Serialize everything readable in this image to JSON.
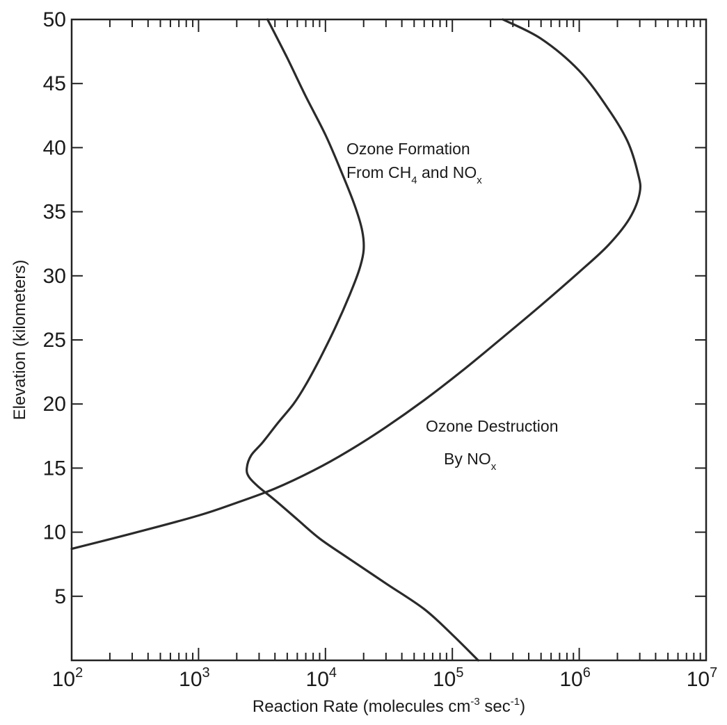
{
  "chart_data": {
    "type": "line",
    "title": "",
    "xlabel": "Reaction Rate (molecules cm",
    "xlabel_sup1": "-3",
    "xlabel_mid": " sec",
    "xlabel_sup2": "-1",
    "xlabel_end": ")",
    "ylabel": "Elevation (kilometers)",
    "x_scale": "log",
    "xlim": [
      100,
      10000000
    ],
    "ylim": [
      0,
      50
    ],
    "x_ticks": [
      {
        "base": "10",
        "exp": "2"
      },
      {
        "base": "10",
        "exp": "3"
      },
      {
        "base": "10",
        "exp": "4"
      },
      {
        "base": "10",
        "exp": "5"
      },
      {
        "base": "10",
        "exp": "6"
      },
      {
        "base": "10",
        "exp": "7"
      }
    ],
    "y_ticks": [
      "5",
      "10",
      "15",
      "20",
      "25",
      "30",
      "35",
      "40",
      "45",
      "50"
    ],
    "annotations": {
      "formation": {
        "line1": "Ozone Formation",
        "line2_pre": "From CH",
        "line2_sub1": "4",
        "line2_mid": " and NO",
        "line2_sub2": "x"
      },
      "destruction": {
        "line1": "Ozone Destruction",
        "line2_pre": "By NO",
        "line2_sub": "x"
      }
    },
    "series": [
      {
        "points": [
          [
            160000,
            0
          ],
          [
            100000,
            2
          ],
          [
            60000,
            4
          ],
          [
            30000,
            6
          ],
          [
            15000,
            8
          ],
          [
            9000,
            9.5
          ],
          [
            6000,
            11
          ],
          [
            4000,
            12.5
          ],
          [
            3000,
            13.5
          ],
          [
            2500,
            14.3
          ],
          [
            2400,
            15
          ],
          [
            2600,
            16
          ],
          [
            3200,
            17
          ],
          [
            4200,
            18.5
          ],
          [
            5600,
            20
          ],
          [
            7000,
            21.5
          ],
          [
            9000,
            23.5
          ],
          [
            12000,
            26
          ],
          [
            15500,
            28.5
          ],
          [
            18500,
            30.5
          ],
          [
            20000,
            32
          ],
          [
            19500,
            33.5
          ],
          [
            17000,
            35.5
          ],
          [
            13500,
            38
          ],
          [
            10000,
            41
          ],
          [
            7000,
            44
          ],
          [
            5000,
            47
          ],
          [
            3500,
            50
          ]
        ]
      },
      {
        "points": [
          [
            100,
            8.7
          ],
          [
            300,
            9.9
          ],
          [
            1000,
            11.3
          ],
          [
            2000,
            12.3
          ],
          [
            4000,
            13.4
          ],
          [
            8000,
            14.8
          ],
          [
            15000,
            16.3
          ],
          [
            30000,
            18.2
          ],
          [
            60000,
            20.3
          ],
          [
            120000,
            22.6
          ],
          [
            250000,
            25.2
          ],
          [
            500000,
            27.7
          ],
          [
            1000000,
            30.3
          ],
          [
            1700000,
            32.4
          ],
          [
            2500000,
            34.5
          ],
          [
            3000000,
            36.5
          ],
          [
            2900000,
            38
          ],
          [
            2400000,
            40.5
          ],
          [
            1700000,
            43
          ],
          [
            1000000,
            46
          ],
          [
            500000,
            48.5
          ],
          [
            250000,
            50
          ]
        ]
      }
    ]
  }
}
